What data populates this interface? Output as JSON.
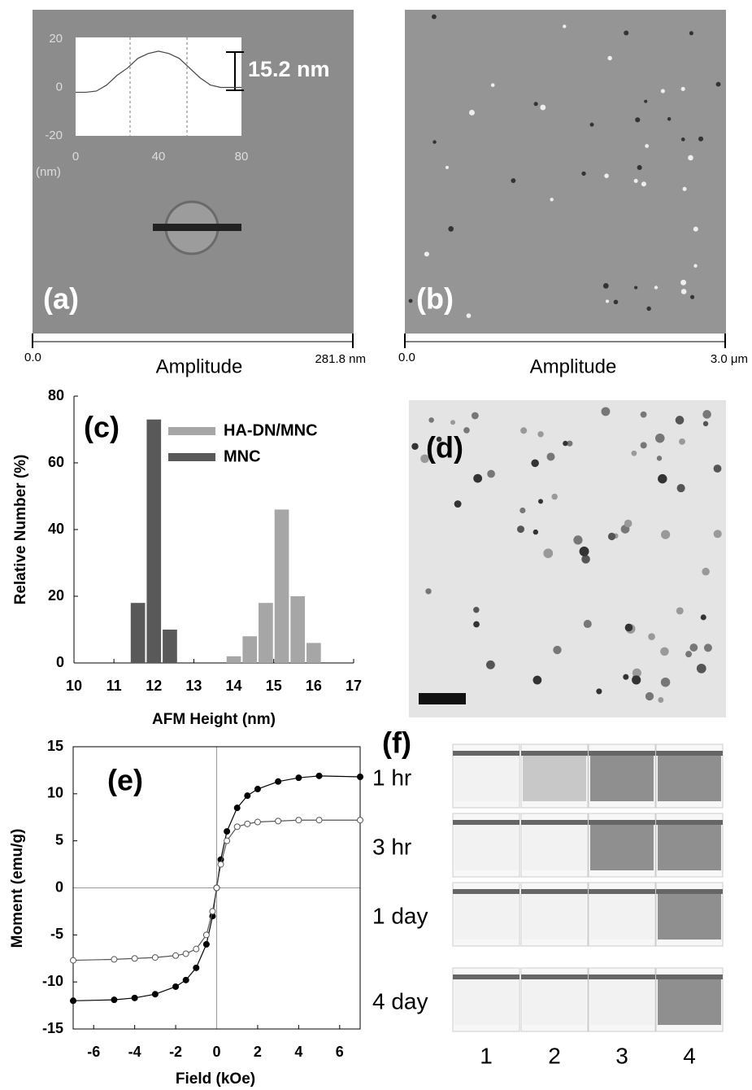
{
  "images": {
    "a": {
      "label": "(a)",
      "scale_start": "0.0",
      "scale_title": "Amplitude",
      "scale_end": "281.8 nm"
    },
    "b": {
      "label": "(b)",
      "scale_start": "0.0",
      "scale_title": "Amplitude",
      "scale_end": "3.0 μm"
    },
    "d": {
      "label": "(d)"
    },
    "f": {
      "label": "(f)",
      "rows": [
        "1 hr",
        "3 hr",
        "1 day",
        "4 day"
      ],
      "columns": [
        "1",
        "2",
        "3",
        "4"
      ]
    }
  },
  "chart_data": [
    {
      "type": "line",
      "annotation": "15.2 nm",
      "ylabel": "(nm)",
      "x": [
        0,
        5,
        10,
        15,
        20,
        25,
        30,
        35,
        40,
        45,
        50,
        55,
        60,
        65,
        70,
        75,
        80
      ],
      "series": [
        {
          "color": "#444444",
          "values": [
            -2,
            -2,
            -1.5,
            1,
            5,
            8,
            12,
            14,
            15,
            14,
            12,
            8,
            4,
            1,
            0,
            0,
            0
          ]
        }
      ],
      "xlim": [
        0,
        80
      ],
      "xticks": [
        0,
        40,
        80
      ],
      "ylim": [
        -20,
        20
      ],
      "yticks": [
        -20,
        0,
        20
      ]
    },
    {
      "type": "bar",
      "label": "(c)",
      "xlabel": "AFM Height (nm)",
      "ylabel": "Relative Number (%)",
      "bar_width": 0.4,
      "series": [
        {
          "name": "HA-DN/MNC",
          "color": "#a6a6a6",
          "x": [
            14.0,
            14.4,
            14.8,
            15.2,
            15.6,
            16.0
          ],
          "values": [
            2,
            8,
            18,
            46,
            20,
            6
          ]
        },
        {
          "name": "MNC",
          "color": "#595959",
          "x": [
            11.6,
            12.0,
            12.4
          ],
          "values": [
            18,
            73,
            10
          ]
        }
      ],
      "xlim": [
        10,
        17
      ],
      "xticks": [
        10,
        11,
        12,
        13,
        14,
        15,
        16,
        17
      ],
      "ylim": [
        0,
        80
      ],
      "yticks": [
        0,
        20,
        40,
        60,
        80
      ]
    },
    {
      "type": "scatter",
      "label": "(e)",
      "xlabel": "Field (kOe)",
      "ylabel": "Moment (emu/g)",
      "series": [
        {
          "color": "#000000",
          "fill": "#000000",
          "x": [
            -7,
            -5,
            -4,
            -3,
            -2,
            -1.5,
            -1,
            -0.5,
            -0.2,
            0,
            0.2,
            0.5,
            1,
            1.5,
            2,
            3,
            4,
            5,
            7
          ],
          "values": [
            -12,
            -11.9,
            -11.7,
            -11.3,
            -10.5,
            -9.8,
            -8.5,
            -6,
            -3,
            0,
            3,
            6,
            8.5,
            9.8,
            10.5,
            11.3,
            11.7,
            11.9,
            11.8
          ]
        },
        {
          "color": "#555555",
          "fill": "#ffffff",
          "x": [
            -7,
            -5,
            -4,
            -3,
            -2,
            -1.5,
            -1,
            -0.5,
            -0.2,
            0,
            0.2,
            0.5,
            1,
            1.5,
            2,
            3,
            4,
            5,
            7
          ],
          "values": [
            -7.7,
            -7.6,
            -7.5,
            -7.4,
            -7.2,
            -7,
            -6.5,
            -5,
            -2.5,
            0,
            2.5,
            5,
            6.5,
            6.8,
            7,
            7.1,
            7.2,
            7.2,
            7.2
          ]
        }
      ],
      "xlim": [
        -7,
        7
      ],
      "xticks": [
        -6,
        -4,
        -2,
        0,
        2,
        4,
        6
      ],
      "ylim": [
        -15,
        15
      ],
      "yticks": [
        -15,
        -10,
        -5,
        0,
        5,
        10,
        15
      ],
      "zero_lines": true
    }
  ]
}
